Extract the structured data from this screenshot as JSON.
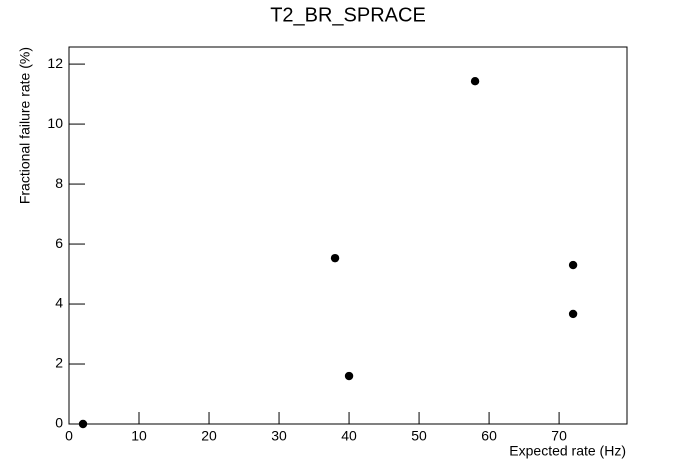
{
  "chart_data": {
    "type": "scatter",
    "title": "T2_BR_SPRACE",
    "x_label": "Expected rate (Hz)",
    "y_label": "Fractional failure rate (%)",
    "series": [
      {
        "color": "#000000",
        "x": [
          2,
          38,
          40,
          58,
          72,
          72
        ],
        "values": [
          0,
          5.53,
          1.6,
          11.43,
          5.3,
          3.67
        ]
      }
    ],
    "xlim": [
      0,
      79.7
    ],
    "ylim": [
      0,
      12.57
    ],
    "xticks": [
      0,
      10,
      20,
      30,
      40,
      50,
      60,
      70
    ],
    "yticks": [
      0,
      2,
      4,
      6,
      8,
      10,
      12
    ]
  }
}
